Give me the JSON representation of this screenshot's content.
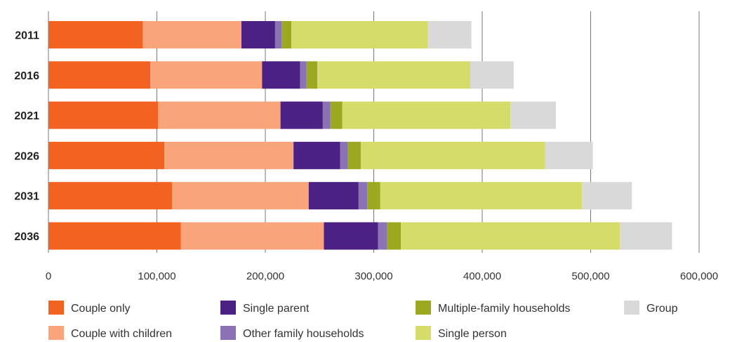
{
  "chart_data": {
    "type": "bar",
    "orientation": "horizontal",
    "stacked": true,
    "categories": [
      "2011",
      "2016",
      "2021",
      "2026",
      "2031",
      "2036"
    ],
    "xlim": [
      0,
      600000
    ],
    "x_ticks": [
      0,
      100000,
      200000,
      300000,
      400000,
      500000,
      600000
    ],
    "x_tick_labels": [
      "0",
      "100,000",
      "200,000",
      "300,000",
      "400,000",
      "500,000",
      "600,000"
    ],
    "grid": "vertical",
    "legend_position": "bottom",
    "series": [
      {
        "name": "Couple only",
        "color": "#f26322",
        "values": [
          87000,
          94000,
          101000,
          107000,
          114000,
          122000
        ]
      },
      {
        "name": "Couple with children",
        "color": "#f9a47a",
        "values": [
          91000,
          103000,
          113000,
          119000,
          126000,
          132000
        ]
      },
      {
        "name": "Single parent",
        "color": "#4b2183",
        "values": [
          31000,
          35000,
          39000,
          43000,
          46000,
          50000
        ]
      },
      {
        "name": "Other family households",
        "color": "#8a72b4",
        "values": [
          6000,
          6000,
          7000,
          7000,
          8000,
          8000
        ]
      },
      {
        "name": "Multiple-family households",
        "color": "#9ca81f",
        "values": [
          9000,
          10000,
          11000,
          12000,
          12000,
          13000
        ]
      },
      {
        "name": "Single person",
        "color": "#d6dc6a",
        "values": [
          126000,
          141000,
          155000,
          170000,
          186000,
          202000
        ]
      },
      {
        "name": "Group",
        "color": "#d9d9d9",
        "values": [
          40000,
          40000,
          42000,
          44000,
          46000,
          48000
        ]
      }
    ]
  }
}
